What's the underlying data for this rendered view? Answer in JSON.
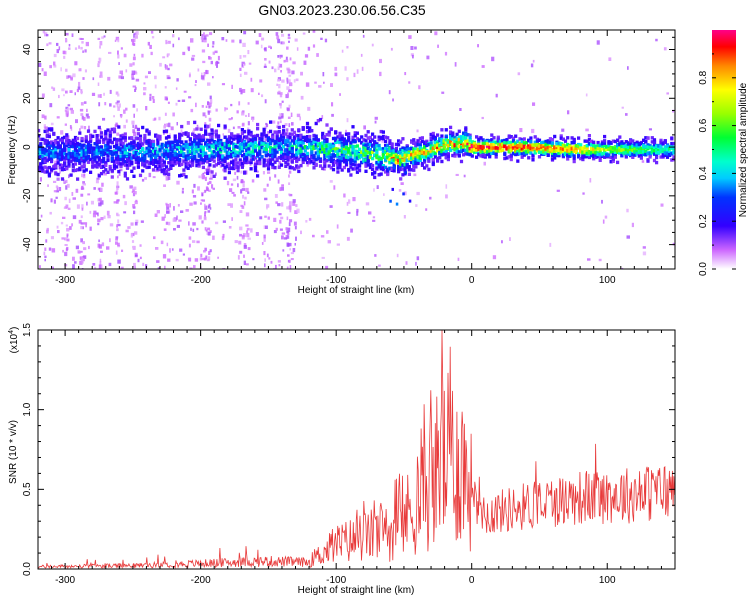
{
  "title": "GN03.2023.230.06.56.C35",
  "chart_data": [
    {
      "type": "heatmap",
      "xlabel": "Height of straight line (km)",
      "ylabel": "Frequency (Hz)",
      "xlim": [
        -320,
        150
      ],
      "ylim": [
        -50,
        48
      ],
      "x_ticks": [
        -300,
        -200,
        -100,
        0,
        100
      ],
      "y_ticks": [
        -40,
        -20,
        0,
        20,
        40
      ],
      "colorbar": {
        "label": "Normalized spectral amplitude",
        "range": [
          0,
          1
        ],
        "ticks": [
          0.0,
          0.2,
          0.4,
          0.6,
          0.8
        ]
      },
      "ridge": [
        {
          "x": -320,
          "f": -2,
          "amp": 0.35
        },
        {
          "x": -250,
          "f": -2,
          "amp": 0.38
        },
        {
          "x": -180,
          "f": -1,
          "amp": 0.45
        },
        {
          "x": -130,
          "f": 0,
          "amp": 0.45
        },
        {
          "x": -100,
          "f": -1,
          "amp": 0.55
        },
        {
          "x": -70,
          "f": -3,
          "amp": 0.6
        },
        {
          "x": -55,
          "f": -5,
          "amp": 0.85
        },
        {
          "x": -35,
          "f": -2,
          "amp": 0.75
        },
        {
          "x": -20,
          "f": 1,
          "amp": 0.8
        },
        {
          "x": -5,
          "f": 2,
          "amp": 0.9
        },
        {
          "x": 0,
          "f": 0,
          "amp": 1.0
        },
        {
          "x": 40,
          "f": 0,
          "amp": 0.95
        },
        {
          "x": 80,
          "f": -1,
          "amp": 0.85
        },
        {
          "x": 100,
          "f": -1,
          "amp": 0.7
        },
        {
          "x": 150,
          "f": -1,
          "amp": 0.5
        }
      ]
    },
    {
      "type": "line",
      "xlabel": "Height of straight line (km)",
      "ylabel": "SNR (10 * v/v)",
      "y_exponent_label": "(x10",
      "y_exponent_power": "4",
      "y_exponent_close": ")",
      "xlim": [
        -320,
        150
      ],
      "ylim": [
        0,
        1.5
      ],
      "x_ticks": [
        -300,
        -200,
        -100,
        0,
        100
      ],
      "y_ticks": [
        0.0,
        0.5,
        1.0,
        1.5
      ],
      "color": "#e83a3a",
      "envelope": [
        {
          "x": -320,
          "y": 0.02
        },
        {
          "x": -250,
          "y": 0.03
        },
        {
          "x": -200,
          "y": 0.05
        },
        {
          "x": -150,
          "y": 0.07
        },
        {
          "x": -120,
          "y": 0.06
        },
        {
          "x": -100,
          "y": 0.2
        },
        {
          "x": -80,
          "y": 0.26
        },
        {
          "x": -60,
          "y": 0.3
        },
        {
          "x": -40,
          "y": 0.52
        },
        {
          "x": -25,
          "y": 0.82
        },
        {
          "x": -15,
          "y": 0.9
        },
        {
          "x": -5,
          "y": 0.82
        },
        {
          "x": 0,
          "y": 0.6
        },
        {
          "x": 10,
          "y": 0.38
        },
        {
          "x": 40,
          "y": 0.44
        },
        {
          "x": 80,
          "y": 0.5
        },
        {
          "x": 120,
          "y": 0.52
        },
        {
          "x": 150,
          "y": 0.55
        }
      ],
      "peak": {
        "x": -22,
        "y": 1.5
      }
    }
  ]
}
